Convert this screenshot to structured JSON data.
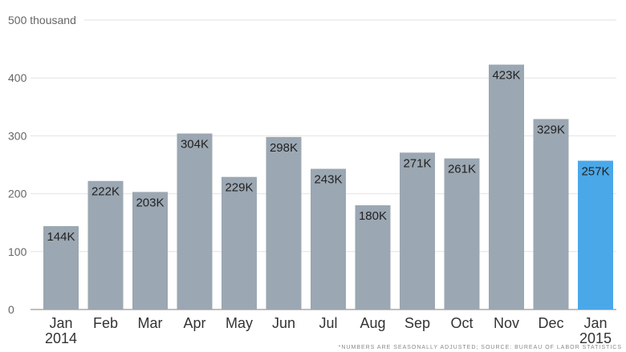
{
  "chart_data": {
    "type": "bar",
    "categories": [
      "Jan 2014",
      "Feb",
      "Mar",
      "Apr",
      "May",
      "Jun",
      "Jul",
      "Aug",
      "Sep",
      "Oct",
      "Nov",
      "Dec",
      "Jan 2015"
    ],
    "category_lines": [
      [
        "Jan",
        "2014"
      ],
      [
        "Feb"
      ],
      [
        "Mar"
      ],
      [
        "Apr"
      ],
      [
        "May"
      ],
      [
        "Jun"
      ],
      [
        "Jul"
      ],
      [
        "Aug"
      ],
      [
        "Sep"
      ],
      [
        "Oct"
      ],
      [
        "Nov"
      ],
      [
        "Dec"
      ],
      [
        "Jan",
        "2015"
      ]
    ],
    "values": [
      144,
      222,
      203,
      304,
      229,
      298,
      243,
      180,
      271,
      261,
      423,
      329,
      257
    ],
    "data_labels": [
      "144K",
      "222K",
      "203K",
      "304K",
      "229K",
      "298K",
      "243K",
      "180K",
      "271K",
      "261K",
      "423K",
      "329K",
      "257K"
    ],
    "ylim": [
      0,
      500
    ],
    "yticks": [
      {
        "value": 0,
        "label": "0"
      },
      {
        "value": 100,
        "label": "100"
      },
      {
        "value": 200,
        "label": "200"
      },
      {
        "value": 300,
        "label": "300"
      },
      {
        "value": 400,
        "label": "400"
      },
      {
        "value": 500,
        "label": "500 thousand"
      }
    ],
    "grid": true,
    "colors": {
      "default": "#9ba7b2",
      "highlight": "#4aa8e8"
    },
    "highlight_index": 12,
    "footnote": "*NUMBERS ARE SEASONALLY ADJUSTED; SOURCE: BUREAU OF LABOR STATISTICS"
  }
}
